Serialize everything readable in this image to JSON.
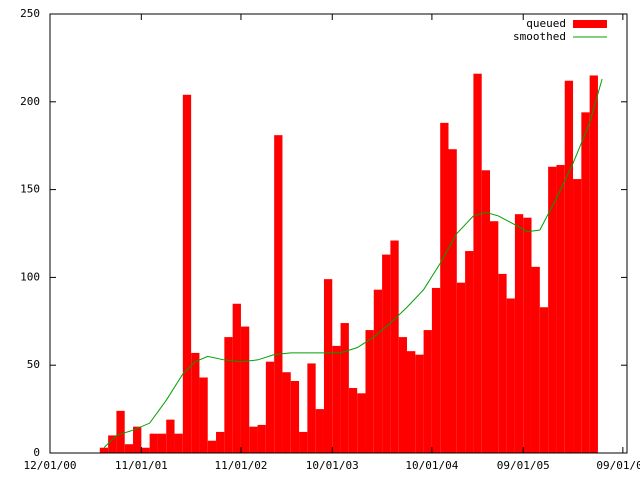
{
  "chart_data": {
    "type": "bar",
    "series": [
      {
        "name": "queued",
        "type": "bar",
        "color": "#ff0000",
        "x": [
          6,
          7,
          8,
          9,
          10,
          11,
          12,
          13,
          14,
          15,
          16,
          17,
          18,
          19,
          20,
          21,
          22,
          23,
          24,
          25,
          26,
          27,
          28,
          29,
          30,
          31,
          32,
          33,
          34,
          35,
          36,
          37,
          38,
          39,
          40,
          41,
          42,
          43,
          44,
          45,
          46,
          47,
          48,
          49,
          50,
          51,
          52,
          53,
          54,
          55,
          56,
          57,
          58,
          59,
          60,
          61,
          62,
          63,
          64,
          65
        ],
        "values": [
          3,
          10,
          24,
          5,
          15,
          3,
          11,
          11,
          19,
          11,
          204,
          57,
          43,
          7,
          12,
          66,
          85,
          72,
          15,
          16,
          52,
          181,
          46,
          41,
          12,
          51,
          25,
          99,
          61,
          74,
          37,
          34,
          70,
          93,
          113,
          121,
          66,
          58,
          56,
          70,
          94,
          188,
          173,
          97,
          115,
          216,
          161,
          132,
          102,
          88,
          136,
          134,
          106,
          83,
          163,
          164,
          212,
          156,
          194,
          215
        ]
      },
      {
        "name": "smoothed",
        "type": "line",
        "color": "#00a000",
        "x": [
          6.5,
          8,
          10,
          12,
          14,
          16,
          17.5,
          19,
          21,
          23,
          25,
          27,
          29,
          31,
          33,
          35,
          37,
          39,
          41,
          43,
          45,
          47,
          49,
          51,
          52.5,
          54,
          56,
          57.5,
          59,
          61,
          63,
          65,
          66.5
        ],
        "values": [
          3,
          10,
          13,
          17,
          30,
          45,
          52,
          55,
          53,
          52,
          53,
          56,
          57,
          57,
          57,
          57,
          60,
          66,
          74,
          83,
          93,
          108,
          125,
          135,
          137,
          135,
          130,
          126,
          127,
          145,
          165,
          188,
          213
        ]
      }
    ],
    "xlim": [
      0,
      69.5
    ],
    "xticks": [
      {
        "value": 0,
        "label": "12/01/00"
      },
      {
        "value": 11,
        "label": "11/01/01"
      },
      {
        "value": 23,
        "label": "11/01/02"
      },
      {
        "value": 34,
        "label": "10/01/03"
      },
      {
        "value": 46,
        "label": "10/01/04"
      },
      {
        "value": 57,
        "label": "09/01/05"
      },
      {
        "value": 69,
        "label": "09/01/06"
      }
    ],
    "ylim": [
      0,
      250
    ],
    "yticks": [
      0,
      50,
      100,
      150,
      200,
      250
    ],
    "legend": "top-right"
  }
}
